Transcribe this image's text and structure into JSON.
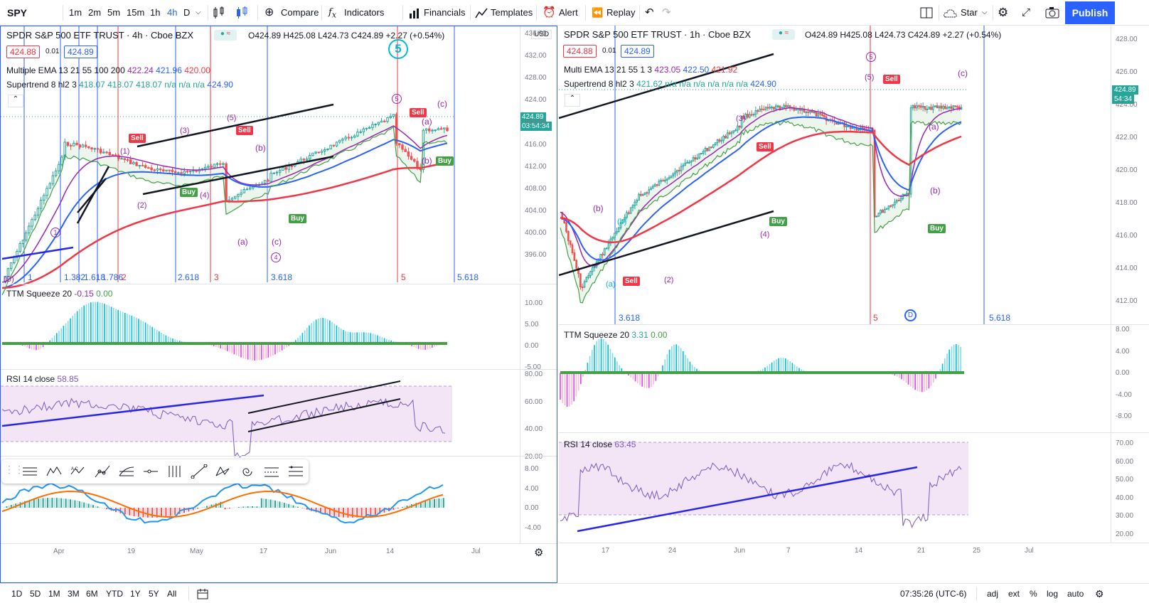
{
  "toolbar": {
    "symbol": "SPY",
    "intervals": [
      "1m",
      "2m",
      "5m",
      "15m",
      "1h",
      "4h",
      "D"
    ],
    "active_interval": "4h",
    "compare": "Compare",
    "indicators": "Indicators",
    "financials": "Financials",
    "templates": "Templates",
    "alert": "Alert",
    "replay": "Replay",
    "star": "Star",
    "publish": "Publish"
  },
  "left": {
    "title": "SPDR S&P 500 ETF TRUST · 4h · Cboe BZX",
    "ohlc": "O424.89 H425.08 L424.73 C424.89 +2.27 (+0.54%)",
    "bid": "424.88",
    "spread": "0.01",
    "ask": "424.89",
    "ema_label": "Multiple EMA 13 21 55 100 200",
    "ema_v1": "422.24",
    "ema_v2": "421.96",
    "ema_v3": "420.00",
    "st_label": "Supertrend 8 hl2 3",
    "st_values": "418.07  418.07  418.07  n/a  n/a  n/a",
    "st_last": "424.90",
    "currency": "USD",
    "price_axis": [
      "436.00",
      "432.00",
      "428.00",
      "424.00",
      "420.00",
      "416.00",
      "412.00",
      "408.00",
      "404.00",
      "400.00",
      "396.00"
    ],
    "last_price": "424.89",
    "countdown": "03:54:34",
    "fibs": [
      "1",
      "1.382",
      "1.618",
      "1.786",
      "2",
      "2.618",
      "3",
      "3.618",
      "5",
      "5.618"
    ],
    "waves": [
      "(1)",
      "(2)",
      "(3)",
      "(4)",
      "(5)",
      "(a)",
      "(b)",
      "(c)",
      "(B)",
      "1",
      "2",
      "3",
      "4",
      "5",
      "(b)",
      "(a)",
      "(c)",
      "(c)",
      "(a)",
      "(b)"
    ],
    "flags": {
      "sell": "Sell",
      "buy": "Buy"
    },
    "ttm_label": "TTM Squeeze 20",
    "ttm_v1": "-0.15",
    "ttm_v2": "0.00",
    "ttm_axis": [
      "10.00",
      "5.00",
      "0.00",
      "-5.00"
    ],
    "rsi_label": "RSI 14 close",
    "rsi_value": "58.85",
    "rsi_axis": [
      "80.00",
      "60.00",
      "40.00",
      "20.00"
    ],
    "macd_axis": [
      "8.00",
      "4.00",
      "0.00",
      "-4.00"
    ],
    "date_axis": [
      "Apr",
      "19",
      "May",
      "17",
      "Jun",
      "14",
      "Jul"
    ]
  },
  "right": {
    "title": "SPDR S&P 500 ETF TRUST · 1h · Cboe BZX",
    "ohlc": "O424.89 H425.08 L424.73 C424.89 +2.27 (+0.54%)",
    "bid": "424.88",
    "spread": "0.01",
    "ask": "424.89",
    "ema_label": "Multi EMA 13 21 55 1 3",
    "ema_v1": "423.05",
    "ema_v2": "422.50",
    "ema_v3": "421.92",
    "st_label": "Supertrend 8 hl2 3",
    "st_values": "421.62  n/a  n/a  n/a  n/a  n/a  n/a",
    "st_last": "424.90",
    "price_axis": [
      "428.00",
      "426.00",
      "424.00",
      "422.00",
      "420.00",
      "418.00",
      "416.00",
      "414.00",
      "412.00"
    ],
    "last_price": "424.89",
    "countdown": "54:34",
    "fibs": [
      "3.618",
      "5",
      "5.618"
    ],
    "ttm_label": "TTM Squeeze 20",
    "ttm_v1": "3.31",
    "ttm_v2": "0.00",
    "ttm_axis": [
      "8.00",
      "4.00",
      "0.00",
      "-4.00",
      "-8.00"
    ],
    "rsi_label": "RSI 14 close",
    "rsi_value": "63.45",
    "rsi_axis": [
      "70.00",
      "60.00",
      "50.00",
      "40.00",
      "30.00",
      "20.00"
    ],
    "date_axis": [
      "17",
      "24",
      "Jun",
      "7",
      "14",
      "21",
      "25",
      "Jul"
    ]
  },
  "bottom": {
    "ranges": [
      "1D",
      "5D",
      "1M",
      "3M",
      "6M",
      "YTD",
      "1Y",
      "5Y",
      "All"
    ],
    "time": "07:35:26 (UTC-6)",
    "opts": [
      "adj",
      "ext",
      "%",
      "log",
      "auto"
    ]
  },
  "colors": {
    "accent": "#2962ff",
    "up": "#26a69a",
    "down": "#ef5350",
    "ema_purple": "#9c27b0",
    "ema_blue": "#2962ff",
    "ema_red": "#f23645",
    "rsi_bg": "#f3e5f5"
  }
}
